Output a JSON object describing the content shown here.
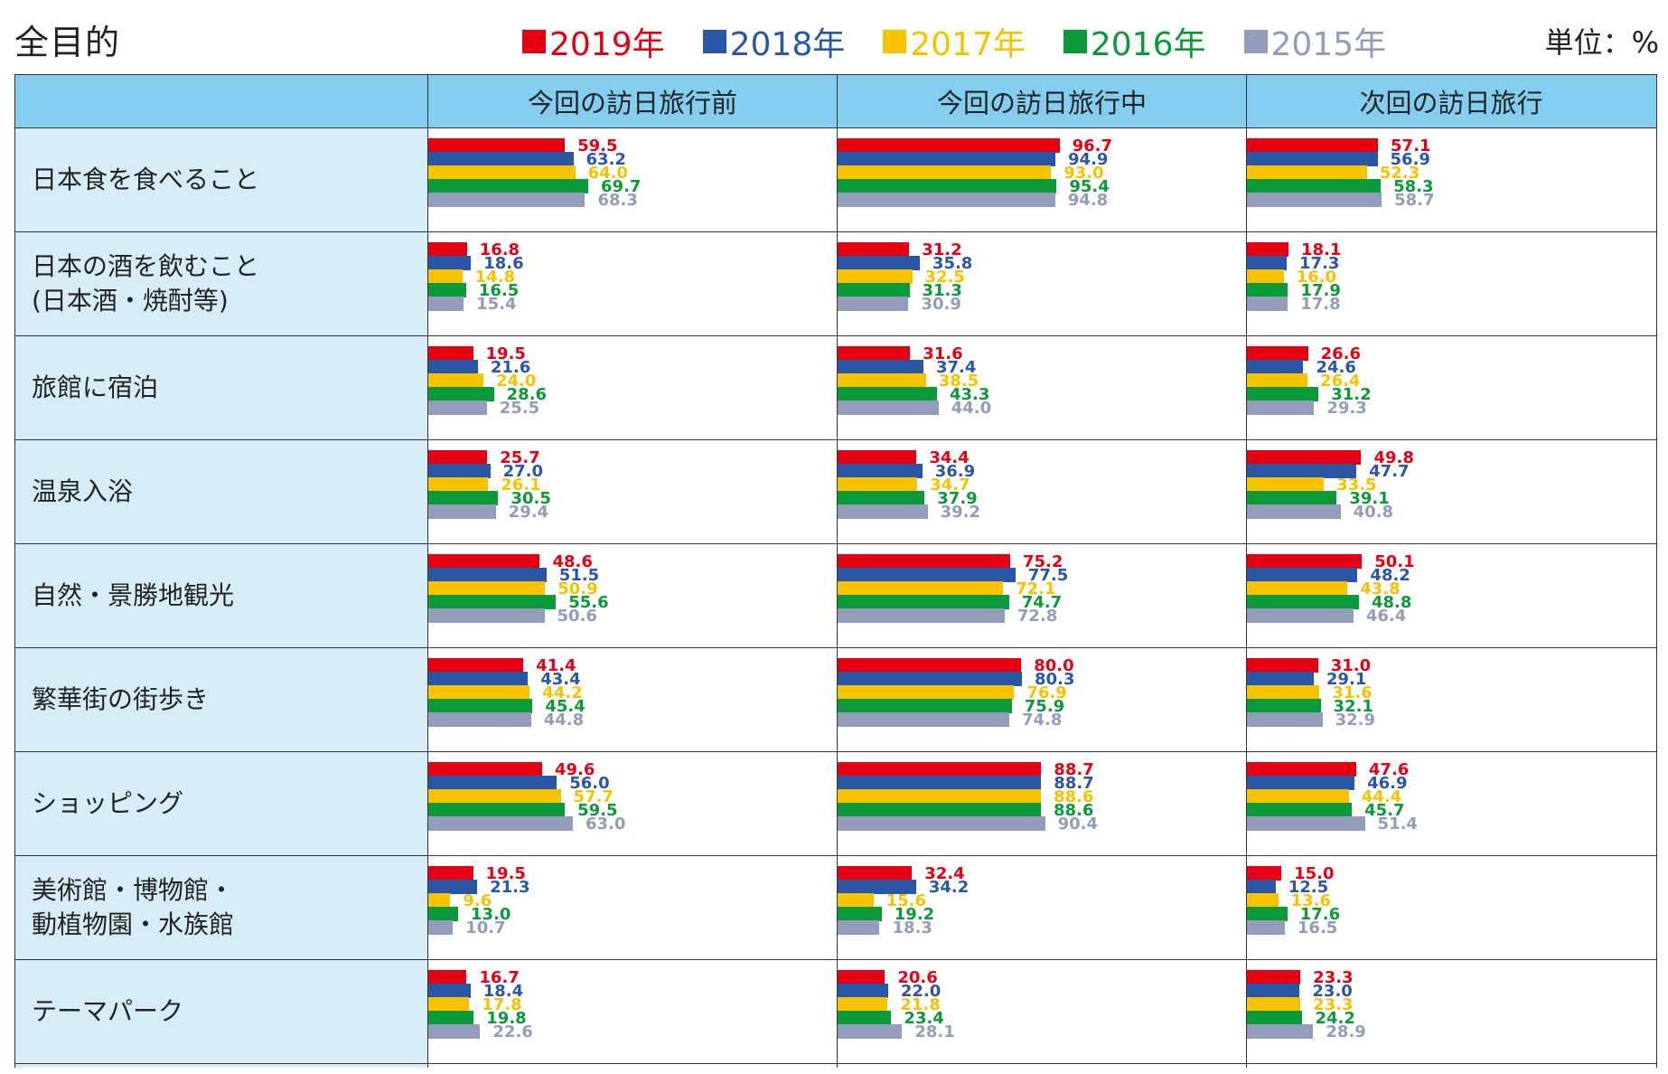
{
  "title": "全目的",
  "unit_label": "単位：%",
  "colors": {
    "2019年": "#e60012",
    "2018年": "#2a56a6",
    "2017年": "#f7c200",
    "2016年": "#0a9a3a",
    "2015年": "#939cba"
  },
  "chart_data": {
    "type": "bar",
    "orientation": "horizontal",
    "series_names": [
      "2019年",
      "2018年",
      "2017年",
      "2016年",
      "2015年"
    ],
    "columns": [
      "今回の訪日旅行前",
      "今回の訪日旅行中",
      "次回の訪日旅行"
    ],
    "xlim": [
      0,
      100
    ],
    "categories": [
      {
        "label": "日本食を食べること",
        "values": [
          [
            59.5,
            63.2,
            64.0,
            69.7,
            68.3
          ],
          [
            96.7,
            94.9,
            93.0,
            95.4,
            94.8
          ],
          [
            57.1,
            56.9,
            52.3,
            58.3,
            58.7
          ]
        ]
      },
      {
        "label": "日本の酒を飲むこと\n(日本酒・焼酎等)",
        "values": [
          [
            16.8,
            18.6,
            14.8,
            16.5,
            15.4
          ],
          [
            31.2,
            35.8,
            32.5,
            31.3,
            30.9
          ],
          [
            18.1,
            17.3,
            16.0,
            17.9,
            17.8
          ]
        ]
      },
      {
        "label": "旅館に宿泊",
        "values": [
          [
            19.5,
            21.6,
            24.0,
            28.6,
            25.5
          ],
          [
            31.6,
            37.4,
            38.5,
            43.3,
            44.0
          ],
          [
            26.6,
            24.6,
            26.4,
            31.2,
            29.3
          ]
        ]
      },
      {
        "label": "温泉入浴",
        "values": [
          [
            25.7,
            27.0,
            26.1,
            30.5,
            29.4
          ],
          [
            34.4,
            36.9,
            34.7,
            37.9,
            39.2
          ],
          [
            49.8,
            47.7,
            33.5,
            39.1,
            40.8
          ]
        ]
      },
      {
        "label": "自然・景勝地観光",
        "values": [
          [
            48.6,
            51.5,
            50.9,
            55.6,
            50.6
          ],
          [
            75.2,
            77.5,
            72.1,
            74.7,
            72.8
          ],
          [
            50.1,
            48.2,
            43.8,
            48.8,
            46.4
          ]
        ]
      },
      {
        "label": "繁華街の街歩き",
        "values": [
          [
            41.4,
            43.4,
            44.2,
            45.4,
            44.8
          ],
          [
            80.0,
            80.3,
            76.9,
            75.9,
            74.8
          ],
          [
            31.0,
            29.1,
            31.6,
            32.1,
            32.9
          ]
        ]
      },
      {
        "label": "ショッピング",
        "values": [
          [
            49.6,
            56.0,
            57.7,
            59.5,
            63.0
          ],
          [
            88.7,
            88.7,
            88.6,
            88.6,
            90.4
          ],
          [
            47.6,
            46.9,
            44.4,
            45.7,
            51.4
          ]
        ]
      },
      {
        "label": "美術館・博物館・\n動植物園・水族館",
        "values": [
          [
            19.5,
            21.3,
            9.6,
            13.0,
            10.7
          ],
          [
            32.4,
            34.2,
            15.6,
            19.2,
            18.3
          ],
          [
            15.0,
            12.5,
            13.6,
            17.6,
            16.5
          ]
        ]
      },
      {
        "label": "テーマパーク",
        "values": [
          [
            16.7,
            18.4,
            17.8,
            19.8,
            22.6
          ],
          [
            20.6,
            22.0,
            21.8,
            23.4,
            28.1
          ],
          [
            23.3,
            23.0,
            23.3,
            24.2,
            28.9
          ]
        ]
      }
    ]
  }
}
